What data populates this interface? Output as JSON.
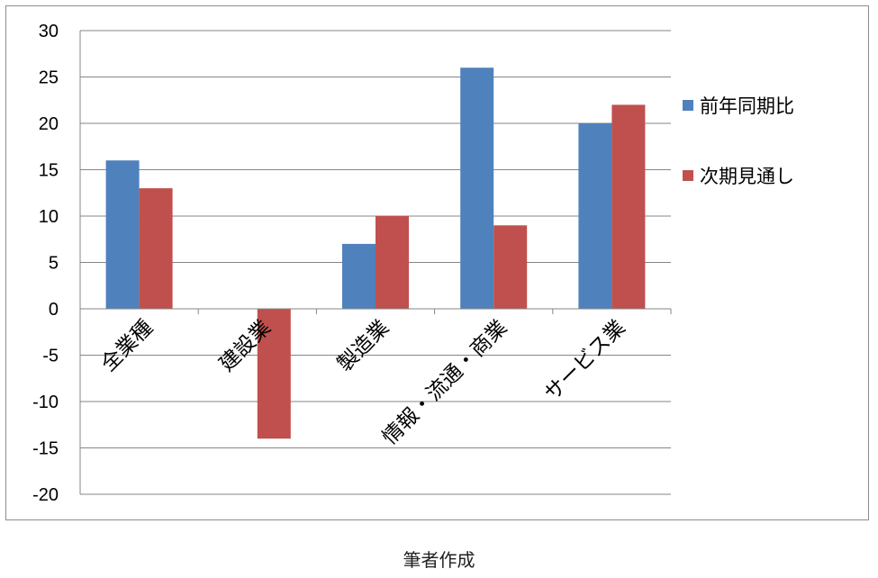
{
  "chart_data": {
    "type": "bar",
    "categories": [
      "全業種",
      "建設業",
      "製造業",
      "情報・流通・商業",
      "サービス業"
    ],
    "series": [
      {
        "name": "前年同期比",
        "color": "#4f81bd",
        "values": [
          16,
          0,
          7,
          26,
          20
        ]
      },
      {
        "name": "次期見通し",
        "color": "#c0504d",
        "values": [
          13,
          -14,
          10,
          9,
          22
        ]
      }
    ],
    "ylim": [
      -20,
      30
    ],
    "yticks": [
      "30",
      "25",
      "20",
      "15",
      "10",
      "5",
      "0",
      "-5",
      "-10",
      "-15",
      "-20"
    ],
    "grid": true,
    "legend_position": "right"
  },
  "caption": "筆者作成"
}
